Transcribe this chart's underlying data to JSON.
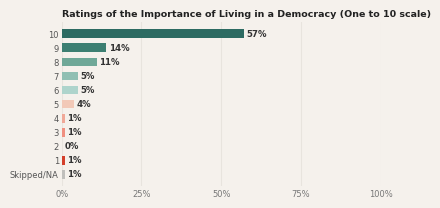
{
  "title": "Ratings of the Importance of Living in a Democracy (One to 10 scale)",
  "categories": [
    "10",
    "9",
    "8",
    "7",
    "6",
    "5",
    "4",
    "3",
    "2",
    "1",
    "Skipped/NA"
  ],
  "values": [
    57,
    14,
    11,
    5,
    5,
    4,
    1,
    1,
    0,
    1,
    1
  ],
  "bar_colors": [
    "#2d6b62",
    "#3d7f72",
    "#6fa898",
    "#8fbfb3",
    "#aed4cc",
    "#f2c9b8",
    "#f0a898",
    "#f09080",
    "#e86050",
    "#d43f2a",
    "#c0bfbc"
  ],
  "xlim": [
    0,
    100
  ],
  "xticks": [
    0,
    25,
    50,
    75,
    100
  ],
  "xtick_labels": [
    "0%",
    "25%",
    "50%",
    "75%",
    "100%"
  ],
  "background_color": "#f5f1ec",
  "grid_color": "#e8e4de",
  "title_fontsize": 6.8,
  "label_fontsize": 6.2,
  "tick_fontsize": 6.0,
  "bar_height": 0.62
}
